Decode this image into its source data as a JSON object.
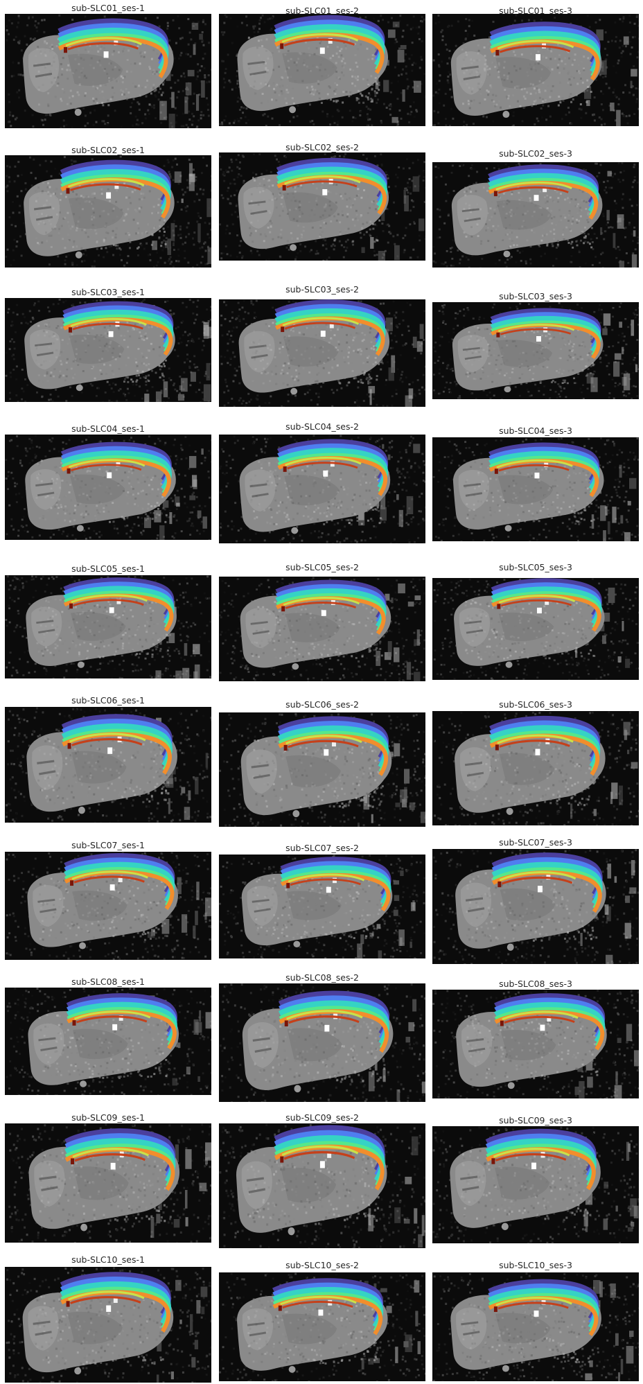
{
  "figure": {
    "panels": [
      {
        "title": "sub-SLC01_ses-1",
        "subject": "SLC01",
        "session": "ses-1"
      },
      {
        "title": "sub-SLC01_ses-2",
        "subject": "SLC01",
        "session": "ses-2"
      },
      {
        "title": "sub-SLC01_ses-3",
        "subject": "SLC01",
        "session": "ses-3"
      },
      {
        "title": "sub-SLC02_ses-1",
        "subject": "SLC02",
        "session": "ses-1"
      },
      {
        "title": "sub-SLC02_ses-2",
        "subject": "SLC02",
        "session": "ses-2"
      },
      {
        "title": "sub-SLC02_ses-3",
        "subject": "SLC02",
        "session": "ses-3"
      },
      {
        "title": "sub-SLC03_ses-1",
        "subject": "SLC03",
        "session": "ses-1"
      },
      {
        "title": "sub-SLC03_ses-2",
        "subject": "SLC03",
        "session": "ses-2"
      },
      {
        "title": "sub-SLC03_ses-3",
        "subject": "SLC03",
        "session": "ses-3"
      },
      {
        "title": "sub-SLC04_ses-1",
        "subject": "SLC04",
        "session": "ses-1"
      },
      {
        "title": "sub-SLC04_ses-2",
        "subject": "SLC04",
        "session": "ses-2"
      },
      {
        "title": "sub-SLC04_ses-3",
        "subject": "SLC04",
        "session": "ses-3"
      },
      {
        "title": "sub-SLC05_ses-1",
        "subject": "SLC05",
        "session": "ses-1"
      },
      {
        "title": "sub-SLC05_ses-2",
        "subject": "SLC05",
        "session": "ses-2"
      },
      {
        "title": "sub-SLC05_ses-3",
        "subject": "SLC05",
        "session": "ses-3"
      },
      {
        "title": "sub-SLC06_ses-1",
        "subject": "SLC06",
        "session": "ses-1"
      },
      {
        "title": "sub-SLC06_ses-2",
        "subject": "SLC06",
        "session": "ses-2"
      },
      {
        "title": "sub-SLC06_ses-3",
        "subject": "SLC06",
        "session": "ses-3"
      },
      {
        "title": "sub-SLC07_ses-1",
        "subject": "SLC07",
        "session": "ses-1"
      },
      {
        "title": "sub-SLC07_ses-2",
        "subject": "SLC07",
        "session": "ses-2"
      },
      {
        "title": "sub-SLC07_ses-3",
        "subject": "SLC07",
        "session": "ses-3"
      },
      {
        "title": "sub-SLC08_ses-1",
        "subject": "SLC08",
        "session": "ses-1"
      },
      {
        "title": "sub-SLC08_ses-2",
        "subject": "SLC08",
        "session": "ses-2"
      },
      {
        "title": "sub-SLC08_ses-3",
        "subject": "SLC08",
        "session": "ses-3"
      },
      {
        "title": "sub-SLC09_ses-1",
        "subject": "SLC09",
        "session": "ses-1"
      },
      {
        "title": "sub-SLC09_ses-2",
        "subject": "SLC09",
        "session": "ses-2"
      },
      {
        "title": "sub-SLC09_ses-3",
        "subject": "SLC09",
        "session": "ses-3"
      },
      {
        "title": "sub-SLC10_ses-1",
        "subject": "SLC10",
        "session": "ses-1"
      },
      {
        "title": "sub-SLC10_ses-2",
        "subject": "SLC10",
        "session": "ses-2"
      },
      {
        "title": "sub-SLC10_ses-3",
        "subject": "SLC10",
        "session": "ses-3"
      }
    ],
    "colors": {
      "background": "#0b0b0b",
      "brain_light": "#a9a9a9",
      "brain_mid": "#8a8a8a",
      "brain_dark": "#6a6a6a",
      "overlay_indigo": "#4b3f9e",
      "overlay_blue": "#4f7ef0",
      "overlay_cyan": "#35d3c4",
      "overlay_green": "#56e88a",
      "overlay_yellow": "#c9e24a",
      "overlay_orange": "#f28e2c",
      "overlay_red": "#c5401a",
      "overlay_darkred": "#7a1508"
    }
  }
}
